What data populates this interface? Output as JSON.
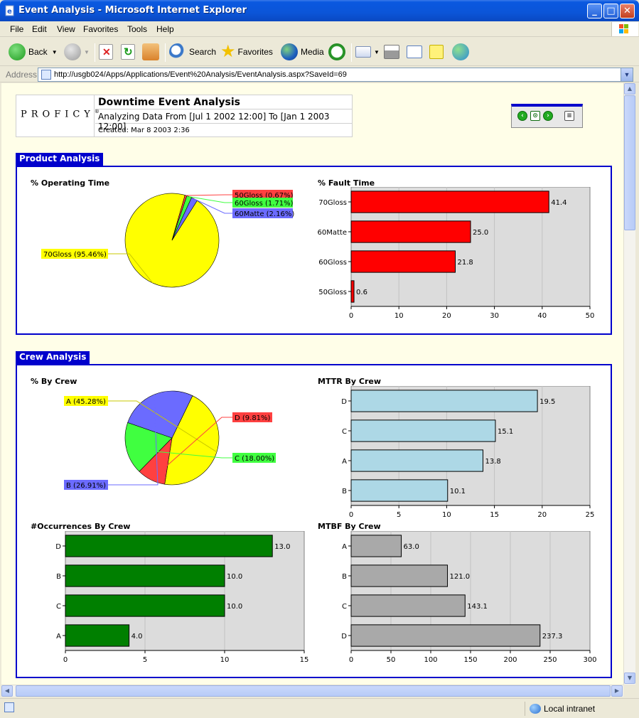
{
  "window": {
    "title": "Event Analysis - Microsoft Internet Explorer"
  },
  "menu": [
    "File",
    "Edit",
    "View",
    "Favorites",
    "Tools",
    "Help"
  ],
  "toolbar": {
    "back": "Back",
    "search": "Search",
    "favorites": "Favorites",
    "media": "Media"
  },
  "address": {
    "label": "Address",
    "url": "http://usgb024/Apps/Applications/Event%20Analysis/EventAnalysis.aspx?SaveId=69"
  },
  "status": {
    "zone": "Local intranet"
  },
  "report": {
    "logo": "PROFICY",
    "logo_mark": "®",
    "title": "Downtime Event Analysis",
    "range": "Analyzing Data From [Jul 1 2002 12:00] To [Jan 1 2003 12:00]",
    "created": "Created: Mar 8 2003 2:36"
  },
  "sections": {
    "product": "Product Analysis",
    "crew": "Crew Analysis"
  },
  "chart_data": [
    {
      "id": "operating",
      "type": "pie",
      "title": "% Operating Time",
      "labels": [
        "70Gloss (95.46%)",
        "50Gloss (0.67%)",
        "60Gloss (1.71%)",
        "60Matte (2.16%)"
      ],
      "values": [
        95.46,
        0.67,
        1.71,
        2.16
      ],
      "colors": [
        "#ffff00",
        "#ff4040",
        "#40ff40",
        "#6b6bff"
      ]
    },
    {
      "id": "fault",
      "type": "bar",
      "orientation": "horizontal",
      "title": "% Fault Time",
      "categories": [
        "70Gloss",
        "60Matte",
        "60Gloss",
        "50Gloss"
      ],
      "values": [
        41.4,
        25.0,
        21.8,
        0.6
      ],
      "value_labels": [
        "41.4",
        "25.0",
        "21.8",
        "0.6"
      ],
      "xlim": [
        0,
        50
      ],
      "ticks": [
        "0",
        "10",
        "20",
        "30",
        "40",
        "50"
      ],
      "color": "#ff0000",
      "grid": true
    },
    {
      "id": "bycrew",
      "type": "pie",
      "title": "% By Crew",
      "labels": [
        "A (45.28%)",
        "D (9.81%)",
        "C (18.00%)",
        "B (26.91%)"
      ],
      "values": [
        45.28,
        9.81,
        18.0,
        26.91
      ],
      "colors": [
        "#ffff00",
        "#ff4040",
        "#40ff40",
        "#6b6bff"
      ]
    },
    {
      "id": "mttr",
      "type": "bar",
      "orientation": "horizontal",
      "title": "MTTR By Crew",
      "categories": [
        "D",
        "C",
        "A",
        "B"
      ],
      "values": [
        19.5,
        15.1,
        13.8,
        10.1
      ],
      "value_labels": [
        "19.5",
        "15.1",
        "13.8",
        "10.1"
      ],
      "xlim": [
        0,
        25
      ],
      "ticks": [
        "0",
        "5",
        "10",
        "15",
        "20",
        "25"
      ],
      "color": "#add8e6",
      "grid": true
    },
    {
      "id": "occ",
      "type": "bar",
      "orientation": "horizontal",
      "title": "#Occurrences By Crew",
      "categories": [
        "D",
        "B",
        "C",
        "A"
      ],
      "values": [
        13.0,
        10.0,
        10.0,
        4.0
      ],
      "value_labels": [
        "13.0",
        "10.0",
        "10.0",
        "4.0"
      ],
      "xlim": [
        0,
        15
      ],
      "ticks": [
        "0",
        "5",
        "10",
        "15"
      ],
      "color": "#007f00",
      "grid": true
    },
    {
      "id": "mtbf",
      "type": "bar",
      "orientation": "horizontal",
      "title": "MTBF By Crew",
      "categories": [
        "A",
        "B",
        "C",
        "D"
      ],
      "values": [
        63.0,
        121.0,
        143.1,
        237.3
      ],
      "value_labels": [
        "63.0",
        "121.0",
        "143.1",
        "237.3"
      ],
      "xlim": [
        0,
        300
      ],
      "ticks": [
        "0",
        "50",
        "100",
        "150",
        "200",
        "250",
        "300"
      ],
      "color": "#a9a9a9",
      "grid": true
    }
  ]
}
